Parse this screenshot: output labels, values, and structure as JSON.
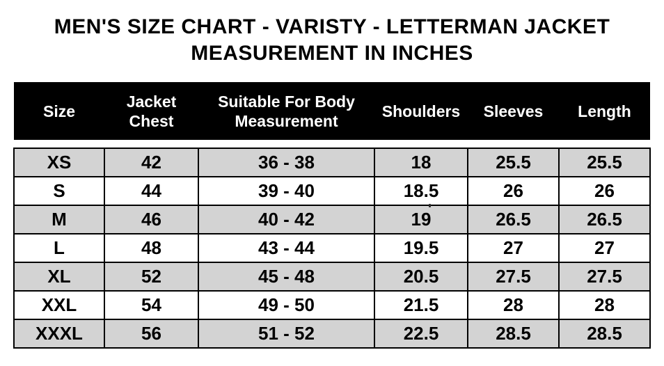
{
  "title": {
    "line1": "MEN'S SIZE CHART - VARISTY - LETTERMAN JACKET",
    "line2": "MEASUREMENT IN INCHES"
  },
  "colors": {
    "header_bg": "#000000",
    "header_text": "#ffffff",
    "row_alt_bg": "#d3d3d3",
    "row_bg": "#ffffff",
    "border": "#000000",
    "text": "#000000"
  },
  "chart_data": {
    "type": "table",
    "title": "MEN'S SIZE CHART - VARISTY - LETTERMAN JACKET MEASUREMENT IN INCHES",
    "columns": [
      "Size",
      "Jacket Chest",
      "Suitable For Body Measurement",
      "Shoulders",
      "Sleeves",
      "Length"
    ],
    "rows": [
      [
        "XS",
        "42",
        "36 - 38",
        "18",
        "25.5",
        "25.5"
      ],
      [
        "S",
        "44",
        "39 - 40",
        "18.5",
        "26",
        "26"
      ],
      [
        "M",
        "46",
        "40 - 42",
        "19",
        "26.5",
        "26.5"
      ],
      [
        "L",
        "48",
        "43 - 44",
        "19.5",
        "27",
        "27"
      ],
      [
        "XL",
        "52",
        "45 - 48",
        "20.5",
        "27.5",
        "27.5"
      ],
      [
        "XXL",
        "54",
        "49 - 50",
        "21.5",
        "28",
        "28"
      ],
      [
        "XXXL",
        "56",
        "51 - 52",
        "22.5",
        "28.5",
        "28.5"
      ]
    ],
    "layout": {
      "alternating_row_shading": true,
      "first_row_shaded": true,
      "header_style": "white-on-black"
    }
  }
}
